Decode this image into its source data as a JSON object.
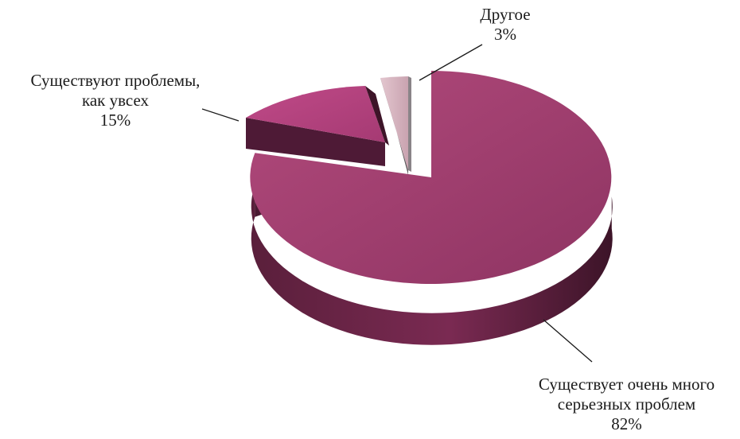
{
  "chart_data": {
    "type": "pie",
    "title": "",
    "slices": [
      {
        "label_lines": [
          "Существует очень много",
          "серьезных проблем"
        ],
        "value": 82,
        "value_text": "82%",
        "color": "#A0406E"
      },
      {
        "label_lines": [
          "Существуют проблемы,",
          "как увсех"
        ],
        "value": 15,
        "value_text": "15%",
        "color": "#B5437F"
      },
      {
        "label_lines": [
          "Другое"
        ],
        "value": 3,
        "value_text": "3%",
        "color": "#D9B8C2"
      }
    ]
  }
}
